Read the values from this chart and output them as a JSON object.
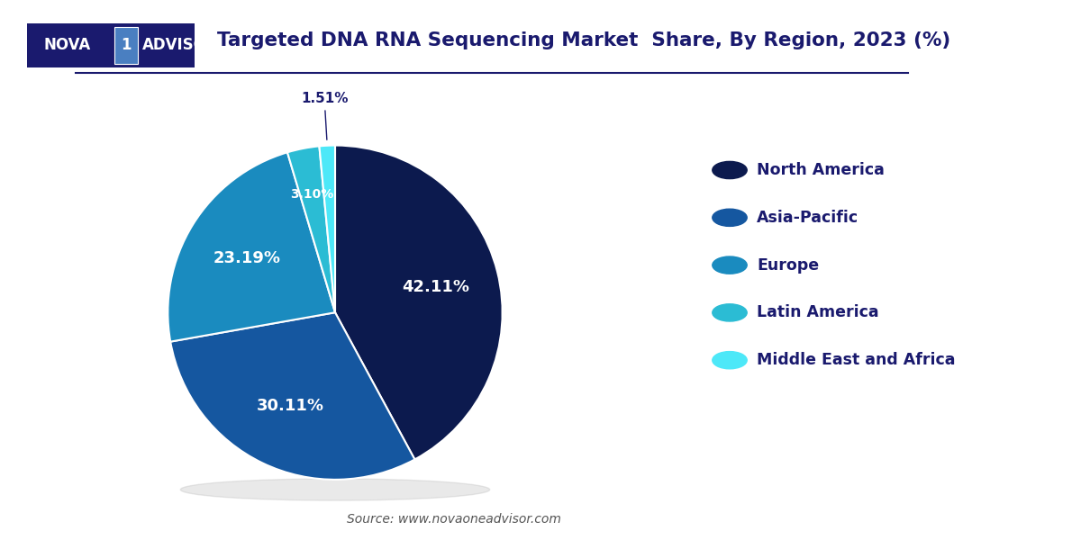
{
  "title": "Targeted DNA RNA Sequencing Market  Share, By Region, 2023 (%)",
  "labels": [
    "North America",
    "Asia-Pacific",
    "Europe",
    "Latin America",
    "Middle East and Africa"
  ],
  "values": [
    42.11,
    30.11,
    23.19,
    3.1,
    1.51
  ],
  "colors": [
    "#0c1a4e",
    "#1557a0",
    "#1a8bbf",
    "#2bbcd4",
    "#4de8f8"
  ],
  "pct_labels": [
    "42.11%",
    "30.11%",
    "23.19%",
    "3.10%",
    "1.51%"
  ],
  "legend_colors": [
    "#0c1a4e",
    "#1557a0",
    "#1a8bbf",
    "#2bbcd4",
    "#4de8f8"
  ],
  "legend_text_color": "#1a1a6e",
  "source_text": "Source: www.novaoneadvisor.com",
  "background_color": "#ffffff"
}
